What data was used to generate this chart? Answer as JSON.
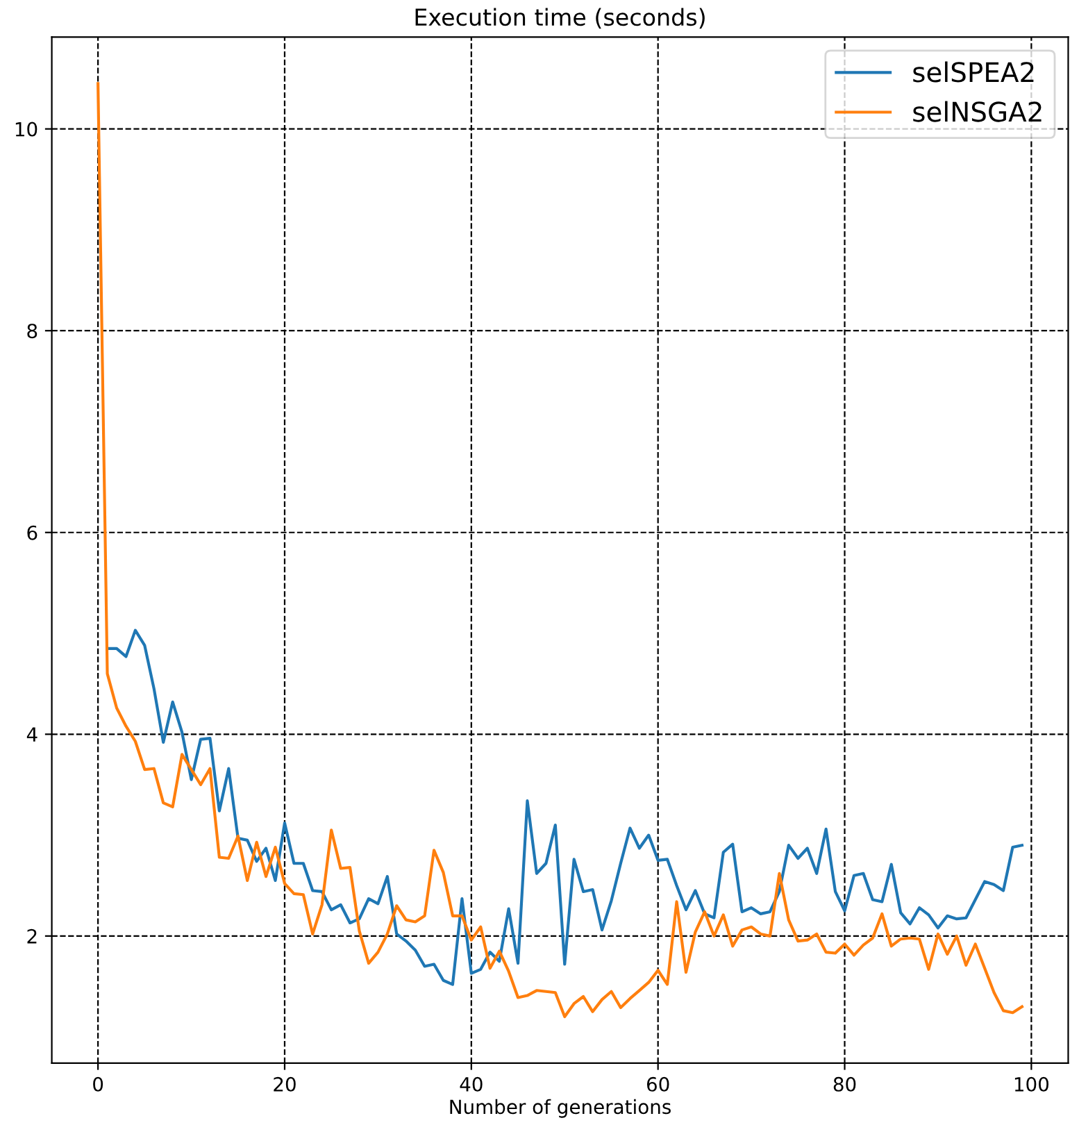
{
  "chart_data": {
    "type": "line",
    "title": "Execution time (seconds)",
    "xlabel": "Number of generations",
    "x": [
      0,
      1,
      2,
      3,
      4,
      5,
      6,
      7,
      8,
      9,
      10,
      11,
      12,
      13,
      14,
      15,
      16,
      17,
      18,
      19,
      20,
      21,
      22,
      23,
      24,
      25,
      26,
      27,
      28,
      29,
      30,
      31,
      32,
      33,
      34,
      35,
      36,
      37,
      38,
      39,
      40,
      41,
      42,
      43,
      44,
      45,
      46,
      47,
      48,
      49,
      50,
      51,
      52,
      53,
      54,
      55,
      56,
      57,
      58,
      59,
      60,
      61,
      62,
      63,
      64,
      65,
      66,
      67,
      68,
      69,
      70,
      71,
      72,
      73,
      74,
      75,
      76,
      77,
      78,
      79,
      80,
      81,
      82,
      83,
      84,
      85,
      86,
      87,
      88,
      89,
      90,
      91,
      92,
      93,
      94,
      95,
      96,
      97,
      98,
      99
    ],
    "series": [
      {
        "name": "selSPEA2",
        "color": "#1f77b4",
        "values": [
          null,
          4.85,
          4.85,
          4.77,
          5.03,
          4.88,
          4.45,
          3.92,
          4.32,
          4.02,
          3.55,
          3.95,
          3.96,
          3.24,
          3.66,
          2.97,
          2.95,
          2.74,
          2.87,
          2.55,
          3.12,
          2.72,
          2.72,
          2.45,
          2.44,
          2.26,
          2.31,
          2.13,
          2.17,
          2.37,
          2.32,
          2.59,
          2.02,
          1.95,
          1.86,
          1.7,
          1.72,
          1.56,
          1.52,
          2.37,
          1.63,
          1.67,
          1.84,
          1.75,
          2.27,
          1.73,
          3.34,
          2.62,
          2.72,
          3.1,
          1.72,
          2.76,
          2.44,
          2.46,
          2.06,
          2.35,
          2.72,
          3.07,
          2.87,
          3.0,
          2.75,
          2.76,
          2.5,
          2.26,
          2.45,
          2.22,
          2.18,
          2.83,
          2.91,
          2.24,
          2.28,
          2.22,
          2.24,
          2.44,
          2.9,
          2.77,
          2.87,
          2.62,
          3.06,
          2.44,
          2.25,
          2.6,
          2.62,
          2.36,
          2.34,
          2.71,
          2.23,
          2.12,
          2.28,
          2.21,
          2.08,
          2.2,
          2.17,
          2.18,
          2.36,
          2.54,
          2.51,
          2.45,
          2.88,
          2.9
        ]
      },
      {
        "name": "selNSGA2",
        "color": "#ff7f0e",
        "values": [
          10.45,
          4.6,
          4.26,
          4.08,
          3.93,
          3.65,
          3.66,
          3.32,
          3.28,
          3.8,
          3.65,
          3.5,
          3.66,
          2.78,
          2.77,
          2.99,
          2.55,
          2.93,
          2.59,
          2.88,
          2.52,
          2.42,
          2.41,
          2.02,
          2.31,
          3.05,
          2.67,
          2.68,
          2.05,
          1.73,
          1.84,
          2.02,
          2.3,
          2.16,
          2.14,
          2.2,
          2.85,
          2.63,
          2.2,
          2.2,
          1.96,
          2.09,
          1.68,
          1.85,
          1.65,
          1.39,
          1.41,
          1.46,
          1.45,
          1.44,
          1.2,
          1.33,
          1.4,
          1.25,
          1.37,
          1.45,
          1.29,
          1.38,
          1.46,
          1.54,
          1.66,
          1.52,
          2.34,
          1.64,
          2.04,
          2.24,
          2.0,
          2.21,
          1.9,
          2.06,
          2.09,
          2.02,
          2.0,
          2.62,
          2.16,
          1.95,
          1.96,
          2.02,
          1.84,
          1.83,
          1.92,
          1.81,
          1.91,
          1.98,
          2.22,
          1.9,
          1.97,
          1.98,
          1.97,
          1.67,
          2.02,
          1.82,
          2.0,
          1.71,
          1.92,
          1.68,
          1.44,
          1.26,
          1.24,
          1.3
        ]
      }
    ],
    "xlim": [
      -4.95,
      103.95
    ],
    "ylim": [
      0.74,
      10.91
    ],
    "xticks": [
      0,
      20,
      40,
      60,
      80,
      100
    ],
    "yticks": [
      2,
      4,
      6,
      8,
      10
    ],
    "grid": true,
    "legend": "top right",
    "line_style": "solid",
    "marker": "none"
  }
}
